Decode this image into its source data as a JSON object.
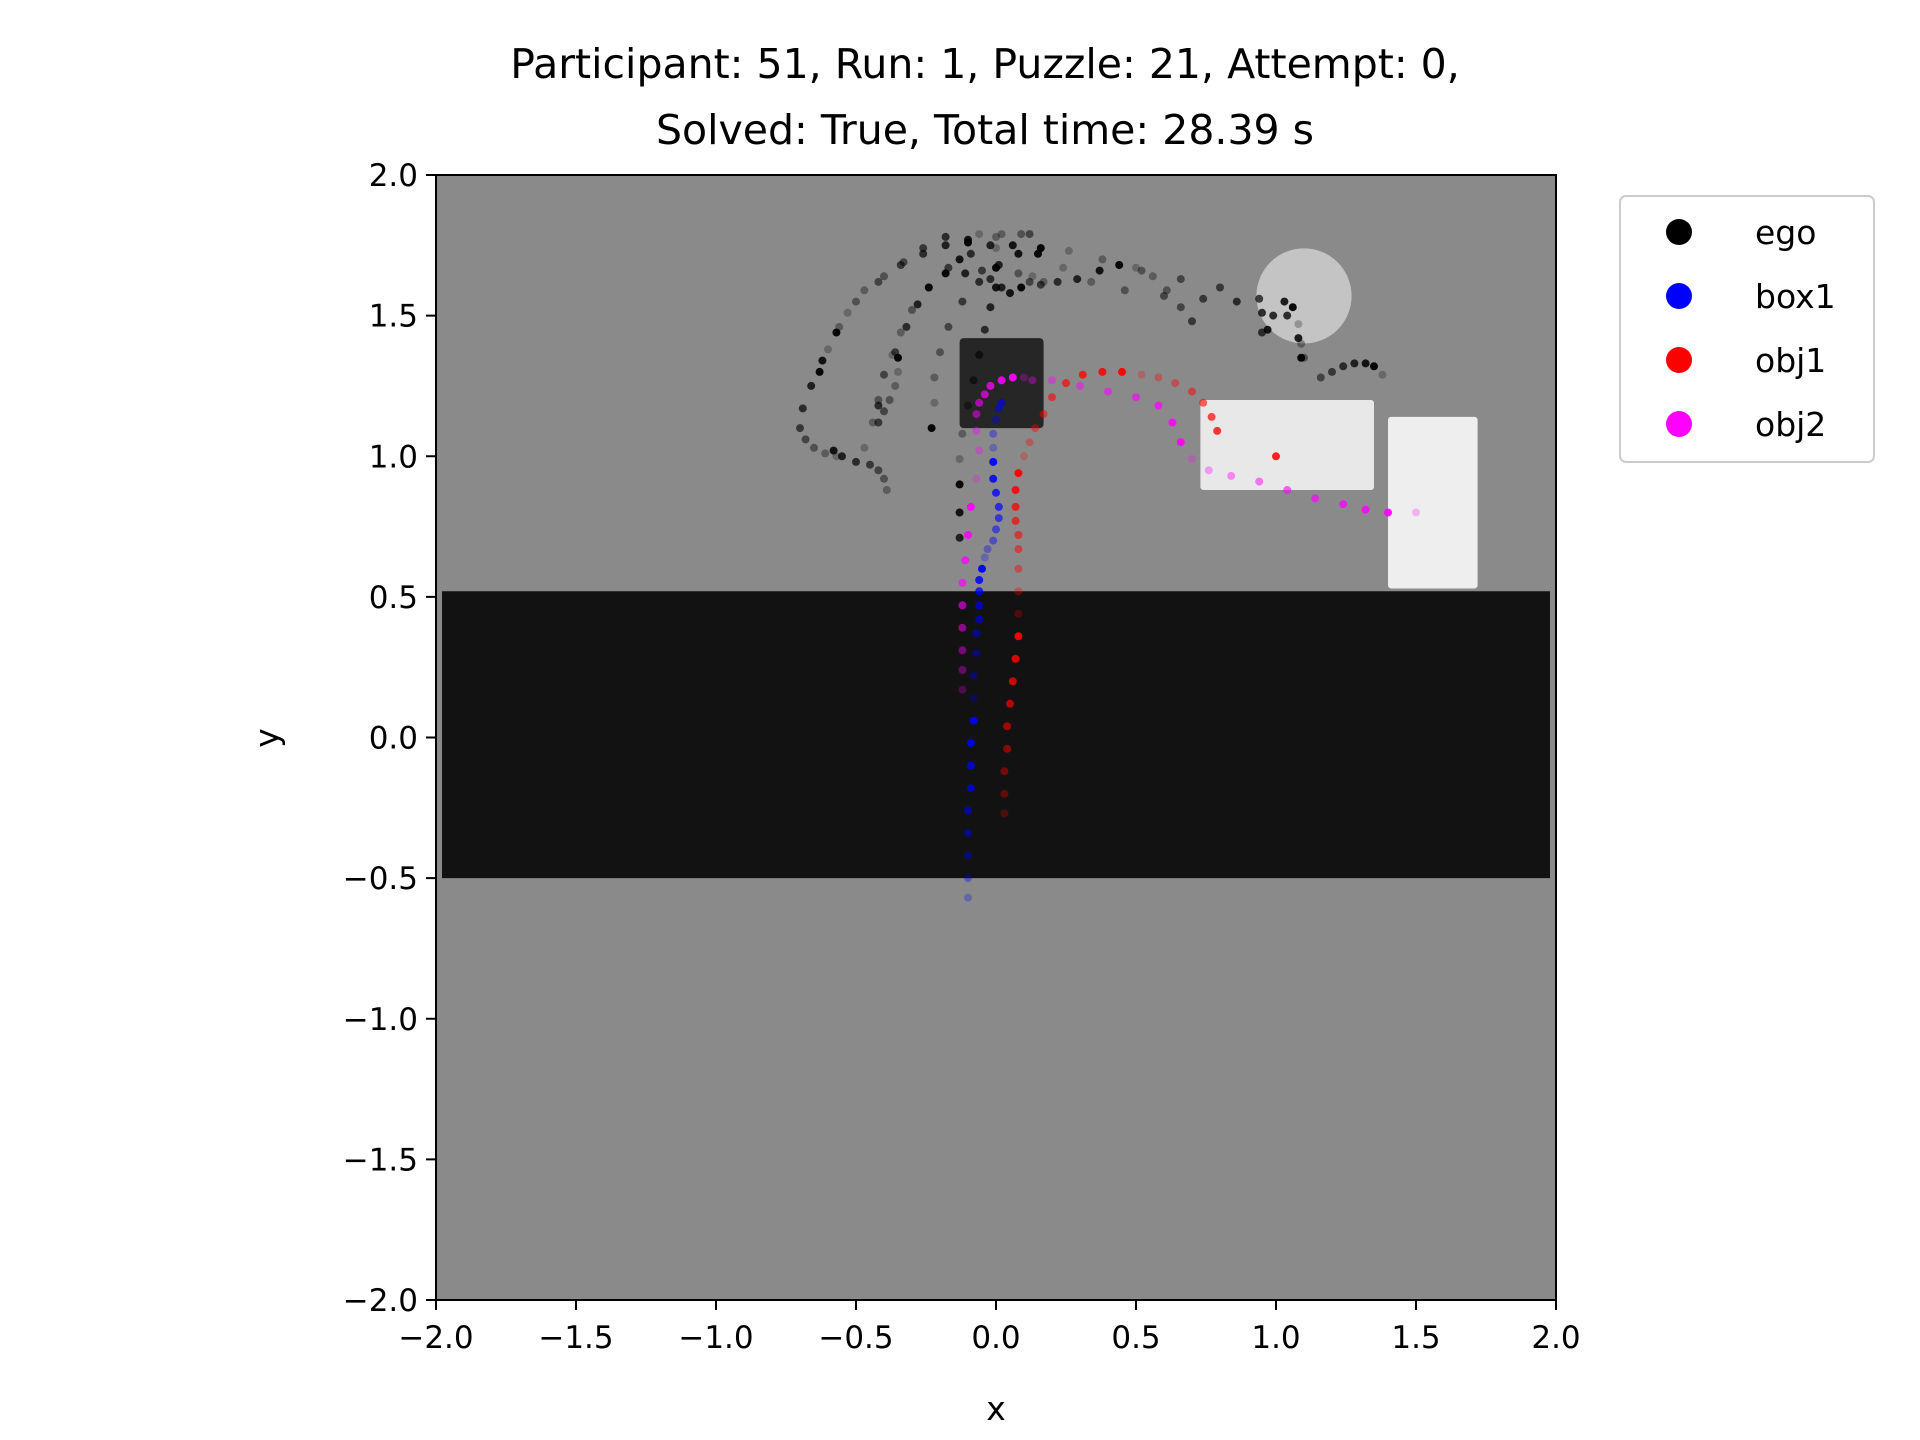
{
  "chart_data": {
    "type": "scatter",
    "title_line1": "Participant: 51, Run: 1, Puzzle: 21, Attempt: 0,",
    "title_line2": "Solved: True, Total time: 28.39 s",
    "xlabel": "x",
    "ylabel": "y",
    "xlim": [
      -2.0,
      2.0
    ],
    "ylim": [
      -2.0,
      2.0
    ],
    "x_ticks": [
      "−2.0",
      "−1.5",
      "−1.0",
      "−0.5",
      "0.0",
      "0.5",
      "1.0",
      "1.5",
      "2.0"
    ],
    "y_ticks": [
      "2.0",
      "1.5",
      "1.0",
      "0.5",
      "0.0",
      "−0.5",
      "−1.0",
      "−1.5",
      "−2.0"
    ],
    "legend_position": "outside-right-top",
    "background": {
      "floor_color": "#8a8a8a",
      "table": {
        "y_min": -0.5,
        "y_max": 0.52,
        "color": "#121212"
      },
      "dark_block": {
        "x": [
          -0.13,
          0.17
        ],
        "y": [
          1.1,
          1.42
        ],
        "color": "#262626"
      },
      "white_box_a": {
        "x": [
          0.73,
          1.35
        ],
        "y": [
          0.88,
          1.2
        ],
        "color": "#e8e8e8"
      },
      "white_box_b": {
        "x": [
          1.4,
          1.72
        ],
        "y": [
          0.53,
          1.14
        ],
        "color": "#eeeeee"
      },
      "circle": {
        "cx": 1.1,
        "cy": 1.57,
        "r": 0.17,
        "color": "#c4c4c4"
      }
    },
    "series": [
      {
        "name": "ego",
        "color": "#000000",
        "points": [
          [
            -0.37,
            1.36
          ],
          [
            -0.34,
            1.44
          ],
          [
            -0.3,
            1.52
          ],
          [
            -0.24,
            1.6
          ],
          [
            -0.17,
            1.67
          ],
          [
            -0.09,
            1.72
          ],
          [
            -0.02,
            1.75
          ],
          [
            0.06,
            1.75
          ],
          [
            0.15,
            1.72
          ],
          [
            0.24,
            1.67
          ],
          [
            0.34,
            1.62
          ],
          [
            0.46,
            1.59
          ],
          [
            0.6,
            1.57
          ],
          [
            0.74,
            1.56
          ],
          [
            0.86,
            1.55
          ],
          [
            0.95,
            1.51
          ],
          [
            0.97,
            1.45
          ],
          [
            -0.63,
            1.3
          ],
          [
            -0.6,
            1.38
          ],
          [
            -0.56,
            1.46
          ],
          [
            -0.5,
            1.55
          ],
          [
            -0.42,
            1.62
          ],
          [
            -0.34,
            1.68
          ],
          [
            -0.26,
            1.72
          ],
          [
            -0.18,
            1.75
          ],
          [
            -0.1,
            1.77
          ],
          [
            -0.23,
            1.1
          ],
          [
            -0.22,
            1.19
          ],
          [
            -0.22,
            1.28
          ],
          [
            -0.2,
            1.37
          ],
          [
            -0.17,
            1.46
          ],
          [
            -0.12,
            1.55
          ],
          [
            -0.06,
            1.62
          ],
          [
            0.01,
            1.68
          ],
          [
            0.08,
            1.72
          ],
          [
            0.16,
            1.74
          ],
          [
            0.26,
            1.73
          ],
          [
            0.38,
            1.7
          ],
          [
            0.52,
            1.66
          ],
          [
            0.66,
            1.63
          ],
          [
            0.8,
            1.6
          ],
          [
            0.94,
            1.56
          ],
          [
            1.04,
            1.5
          ],
          [
            1.08,
            1.42
          ],
          [
            1.09,
            1.35
          ],
          [
            -0.47,
            1.03
          ],
          [
            -0.44,
            1.12
          ],
          [
            -0.42,
            1.2
          ],
          [
            -0.4,
            1.29
          ],
          [
            -0.36,
            1.37
          ],
          [
            -0.32,
            1.46
          ],
          [
            -0.28,
            1.54
          ],
          [
            -0.24,
            1.6
          ],
          [
            -0.18,
            1.65
          ],
          [
            -0.57,
            1.0
          ],
          [
            -0.61,
            1.01
          ],
          [
            -0.65,
            1.03
          ],
          [
            -0.68,
            1.06
          ],
          [
            -0.7,
            1.1
          ],
          [
            -0.69,
            1.17
          ],
          [
            -0.66,
            1.25
          ],
          [
            -0.62,
            1.34
          ],
          [
            -0.57,
            1.44
          ],
          [
            -0.53,
            1.51
          ],
          [
            -0.47,
            1.59
          ],
          [
            -0.4,
            1.64
          ],
          [
            -0.33,
            1.69
          ],
          [
            -0.26,
            1.74
          ],
          [
            -0.18,
            1.78
          ],
          [
            -0.13,
            0.71
          ],
          [
            -0.13,
            0.8
          ],
          [
            -0.13,
            0.9
          ],
          [
            -0.13,
            0.99
          ],
          [
            -0.12,
            1.08
          ],
          [
            -0.1,
            1.18
          ],
          [
            -0.08,
            1.27
          ],
          [
            -0.06,
            1.36
          ],
          [
            -0.04,
            1.45
          ],
          [
            -0.02,
            1.53
          ],
          [
            0.0,
            1.6
          ],
          [
            0.0,
            1.67
          ],
          [
            0.0,
            1.74
          ],
          [
            0.0,
            1.78
          ],
          [
            0.08,
            1.65
          ],
          [
            0.12,
            1.62
          ],
          [
            0.16,
            1.61
          ],
          [
            0.22,
            1.62
          ],
          [
            0.29,
            1.63
          ],
          [
            0.37,
            1.66
          ],
          [
            0.44,
            1.68
          ],
          [
            0.5,
            1.67
          ],
          [
            0.56,
            1.64
          ],
          [
            0.61,
            1.59
          ],
          [
            0.66,
            1.53
          ],
          [
            0.7,
            1.48
          ],
          [
            0.95,
            1.44
          ],
          [
            0.99,
            1.5
          ],
          [
            1.03,
            1.55
          ],
          [
            1.06,
            1.53
          ],
          [
            1.08,
            1.47
          ],
          [
            1.09,
            1.4
          ],
          [
            1.1,
            1.35
          ],
          [
            1.16,
            1.28
          ],
          [
            1.2,
            1.3
          ],
          [
            1.24,
            1.32
          ],
          [
            1.28,
            1.33
          ],
          [
            1.32,
            1.33
          ],
          [
            1.35,
            1.32
          ],
          [
            1.38,
            1.29
          ],
          [
            -0.39,
            0.88
          ],
          [
            -0.4,
            0.92
          ],
          [
            -0.42,
            0.95
          ],
          [
            -0.45,
            0.97
          ],
          [
            -0.5,
            0.98
          ],
          [
            -0.55,
            1.0
          ],
          [
            -0.58,
            1.02
          ],
          [
            -0.35,
            1.35
          ],
          [
            -0.35,
            1.3
          ],
          [
            -0.36,
            1.25
          ],
          [
            -0.38,
            1.2
          ],
          [
            -0.4,
            1.16
          ],
          [
            -0.42,
            1.12
          ],
          [
            -0.42,
            1.18
          ],
          [
            -0.11,
            1.65
          ],
          [
            -0.13,
            1.7
          ],
          [
            -0.1,
            1.76
          ],
          [
            -0.06,
            1.79
          ],
          [
            0.02,
            1.79
          ],
          [
            0.09,
            1.79
          ],
          [
            0.12,
            1.79
          ],
          [
            -0.05,
            1.66
          ],
          [
            -0.02,
            1.63
          ],
          [
            0.02,
            1.6
          ],
          [
            0.05,
            1.58
          ],
          [
            0.09,
            1.6
          ],
          [
            0.13,
            1.64
          ],
          [
            0.17,
            1.62
          ]
        ]
      },
      {
        "name": "box1",
        "color": "#0000ff",
        "points": [
          [
            -0.1,
            -0.57
          ],
          [
            -0.1,
            -0.5
          ],
          [
            -0.1,
            -0.42
          ],
          [
            -0.1,
            -0.34
          ],
          [
            -0.1,
            -0.26
          ],
          [
            -0.09,
            -0.18
          ],
          [
            -0.09,
            -0.1
          ],
          [
            -0.09,
            -0.02
          ],
          [
            -0.08,
            0.06
          ],
          [
            -0.08,
            0.14
          ],
          [
            -0.08,
            0.22
          ],
          [
            -0.07,
            0.3
          ],
          [
            -0.07,
            0.37
          ],
          [
            -0.06,
            0.42
          ],
          [
            -0.06,
            0.47
          ],
          [
            -0.06,
            0.52
          ],
          [
            -0.06,
            0.56
          ],
          [
            -0.05,
            0.6
          ],
          [
            -0.04,
            0.64
          ],
          [
            -0.03,
            0.67
          ],
          [
            -0.01,
            0.7
          ],
          [
            0.0,
            0.74
          ],
          [
            0.01,
            0.78
          ],
          [
            0.01,
            0.82
          ],
          [
            0.0,
            0.87
          ],
          [
            -0.01,
            0.92
          ],
          [
            -0.01,
            0.98
          ],
          [
            -0.01,
            1.03
          ],
          [
            -0.01,
            1.08
          ],
          [
            0.0,
            1.13
          ],
          [
            0.01,
            1.17
          ],
          [
            0.02,
            1.19
          ]
        ]
      },
      {
        "name": "obj1",
        "color": "#ff0000",
        "points": [
          [
            0.03,
            -0.27
          ],
          [
            0.03,
            -0.2
          ],
          [
            0.03,
            -0.12
          ],
          [
            0.04,
            -0.04
          ],
          [
            0.04,
            0.04
          ],
          [
            0.05,
            0.12
          ],
          [
            0.06,
            0.2
          ],
          [
            0.07,
            0.28
          ],
          [
            0.08,
            0.36
          ],
          [
            0.08,
            0.44
          ],
          [
            0.08,
            0.52
          ],
          [
            0.08,
            0.6
          ],
          [
            0.08,
            0.67
          ],
          [
            0.08,
            0.72
          ],
          [
            0.07,
            0.77
          ],
          [
            0.07,
            0.82
          ],
          [
            0.07,
            0.88
          ],
          [
            0.08,
            0.94
          ],
          [
            0.1,
            1.0
          ],
          [
            0.12,
            1.05
          ],
          [
            0.14,
            1.1
          ],
          [
            0.17,
            1.15
          ],
          [
            0.2,
            1.21
          ],
          [
            0.25,
            1.26
          ],
          [
            0.31,
            1.29
          ],
          [
            0.38,
            1.3
          ],
          [
            0.45,
            1.3
          ],
          [
            0.52,
            1.29
          ],
          [
            0.58,
            1.28
          ],
          [
            0.64,
            1.26
          ],
          [
            0.7,
            1.23
          ],
          [
            0.74,
            1.19
          ],
          [
            0.77,
            1.14
          ],
          [
            0.79,
            1.09
          ],
          [
            1.0,
            1.0
          ]
        ]
      },
      {
        "name": "obj2",
        "color": "#ff00ff",
        "points": [
          [
            -0.12,
            0.17
          ],
          [
            -0.12,
            0.24
          ],
          [
            -0.12,
            0.31
          ],
          [
            -0.12,
            0.39
          ],
          [
            -0.12,
            0.47
          ],
          [
            -0.12,
            0.55
          ],
          [
            -0.11,
            0.63
          ],
          [
            -0.1,
            0.72
          ],
          [
            -0.09,
            0.82
          ],
          [
            -0.07,
            0.92
          ],
          [
            -0.06,
            1.02
          ],
          [
            -0.07,
            1.09
          ],
          [
            -0.07,
            1.15
          ],
          [
            -0.06,
            1.19
          ],
          [
            -0.04,
            1.22
          ],
          [
            -0.02,
            1.25
          ],
          [
            0.02,
            1.27
          ],
          [
            0.06,
            1.28
          ],
          [
            0.1,
            1.28
          ],
          [
            0.13,
            1.27
          ],
          [
            0.2,
            1.27
          ],
          [
            0.3,
            1.25
          ],
          [
            0.4,
            1.23
          ],
          [
            0.5,
            1.21
          ],
          [
            0.58,
            1.18
          ],
          [
            0.63,
            1.12
          ],
          [
            0.66,
            1.05
          ],
          [
            0.7,
            0.99
          ],
          [
            0.76,
            0.95
          ],
          [
            0.84,
            0.93
          ],
          [
            0.94,
            0.91
          ],
          [
            1.04,
            0.88
          ],
          [
            1.14,
            0.85
          ],
          [
            1.24,
            0.83
          ],
          [
            1.32,
            0.81
          ],
          [
            1.4,
            0.8
          ],
          [
            1.5,
            0.8
          ]
        ]
      }
    ]
  }
}
